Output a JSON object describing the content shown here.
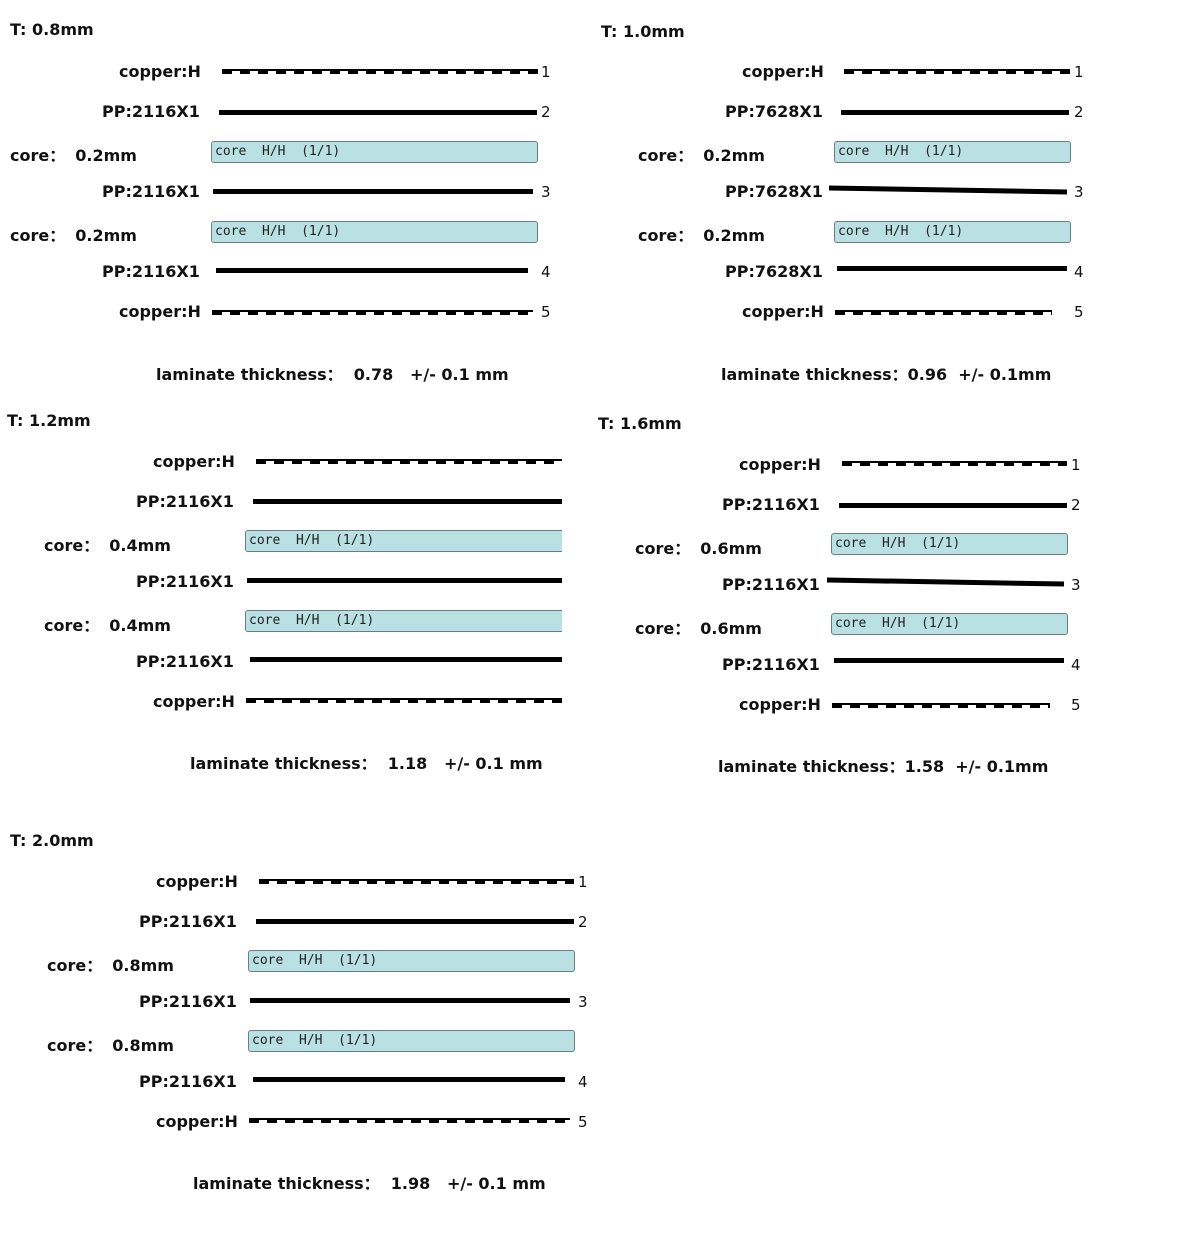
{
  "panels": [
    {
      "title": "T: 0.8mm",
      "layers": [
        {
          "label": "copper:H",
          "num": "1"
        },
        {
          "label": "PP:2116X1",
          "num": "2"
        },
        {
          "core_label": "core：",
          "core_value": "0.2mm",
          "box_text": "core  H/H  (1/1)"
        },
        {
          "label": "PP:2116X1",
          "num": "3"
        },
        {
          "core_label": "core：",
          "core_value": "0.2mm",
          "box_text": "core  H/H  (1/1)"
        },
        {
          "label": "PP:2116X1",
          "num": "4"
        },
        {
          "label": "copper:H",
          "num": "5"
        }
      ],
      "summary": "laminate thickness：  0.78   +/- 0.1 mm"
    },
    {
      "title": "T: 1.0mm",
      "layers": [
        {
          "label": "copper:H",
          "num": "1"
        },
        {
          "label": "PP:7628X1",
          "num": "2"
        },
        {
          "core_label": "core：",
          "core_value": "0.2mm",
          "box_text": "core  H/H  (1/1)"
        },
        {
          "label": "PP:7628X1",
          "num": "3"
        },
        {
          "core_label": "core：",
          "core_value": "0.2mm",
          "box_text": "core  H/H  (1/1)"
        },
        {
          "label": "PP:7628X1",
          "num": "4"
        },
        {
          "label": "copper:H",
          "num": "5"
        }
      ],
      "summary": "laminate thickness：0.96  +/- 0.1mm"
    },
    {
      "title": "T: 1.2mm",
      "layers": [
        {
          "label": "copper:H",
          "num": ""
        },
        {
          "label": "PP:2116X1",
          "num": ""
        },
        {
          "core_label": "core：",
          "core_value": "0.4mm",
          "box_text": "core  H/H  (1/1)"
        },
        {
          "label": "PP:2116X1",
          "num": ""
        },
        {
          "core_label": "core：",
          "core_value": "0.4mm",
          "box_text": "core  H/H  (1/1)"
        },
        {
          "label": "PP:2116X1",
          "num": ""
        },
        {
          "label": "copper:H",
          "num": ""
        }
      ],
      "summary": "laminate thickness：  1.18   +/- 0.1 mm"
    },
    {
      "title": "T: 1.6mm",
      "layers": [
        {
          "label": "copper:H",
          "num": "1"
        },
        {
          "label": "PP:2116X1",
          "num": "2"
        },
        {
          "core_label": "core：",
          "core_value": "0.6mm",
          "box_text": "core  H/H  (1/1)"
        },
        {
          "label": "PP:2116X1",
          "num": "3"
        },
        {
          "core_label": "core：",
          "core_value": "0.6mm",
          "box_text": "core  H/H  (1/1)"
        },
        {
          "label": "PP:2116X1",
          "num": "4"
        },
        {
          "label": "copper:H",
          "num": "5"
        }
      ],
      "summary": "laminate thickness：1.58  +/- 0.1mm"
    },
    {
      "title": "T: 2.0mm",
      "layers": [
        {
          "label": "copper:H",
          "num": "1"
        },
        {
          "label": "PP:2116X1",
          "num": "2"
        },
        {
          "core_label": "core：",
          "core_value": "0.8mm",
          "box_text": "core  H/H  (1/1)"
        },
        {
          "label": "PP:2116X1",
          "num": "3"
        },
        {
          "core_label": "core：",
          "core_value": "0.8mm",
          "box_text": "core  H/H  (1/1)"
        },
        {
          "label": "PP:2116X1",
          "num": "4"
        },
        {
          "label": "copper:H",
          "num": "5"
        }
      ],
      "summary": "laminate thickness：  1.98   +/- 0.1 mm"
    }
  ]
}
